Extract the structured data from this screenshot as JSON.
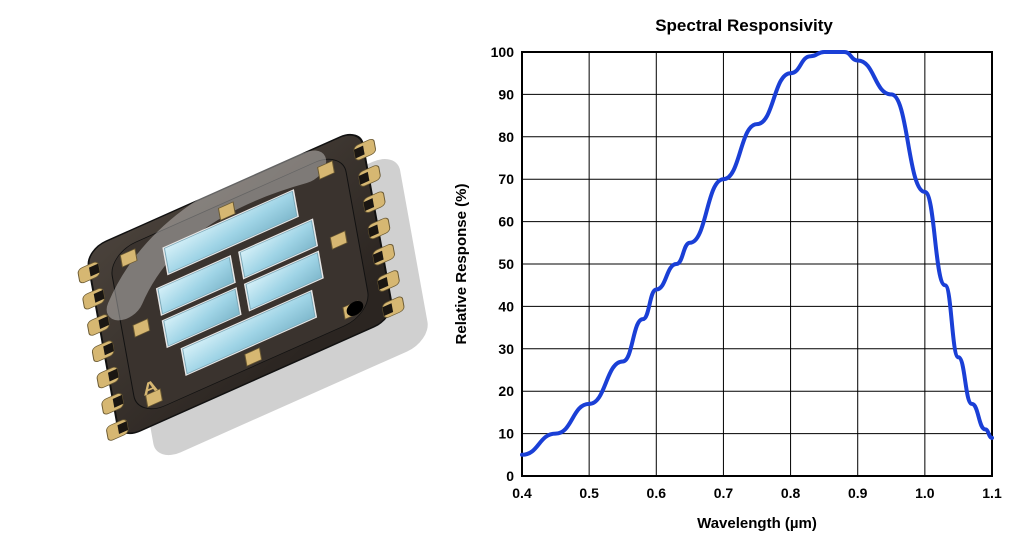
{
  "chip_illustration": {
    "description": "photodiode-array-chip",
    "body_color": "#2b2521",
    "substrate_color": "#3a332e",
    "pad_color": "#d6b772",
    "die_color": "#9fd4e6",
    "die_edge_color": "#e8e8e8",
    "shadow_color": "#d0d0d0",
    "highlight_color": "#ffffff",
    "marking": "A"
  },
  "chart": {
    "type": "line",
    "title": "Spectral Responsivity",
    "title_fontsize": 17,
    "title_fontweight": "bold",
    "xlabel": "Wavelength (µm)",
    "ylabel": "Relative Response (%)",
    "label_fontsize": 15,
    "label_fontweight": "bold",
    "tick_fontsize": 14,
    "tick_fontweight": "bold",
    "xlim": [
      0.4,
      1.1
    ],
    "ylim": [
      0,
      100
    ],
    "xticks": [
      0.4,
      0.5,
      0.6,
      0.7,
      0.8,
      0.9,
      1.0,
      1.1
    ],
    "yticks": [
      0,
      10,
      20,
      30,
      40,
      50,
      60,
      70,
      80,
      90,
      100
    ],
    "grid_color": "#000000",
    "grid_width": 1,
    "axis_color": "#000000",
    "axis_width": 2,
    "background_color": "#ffffff",
    "series": {
      "color": "#1a3fd6",
      "width": 4,
      "points": [
        [
          0.4,
          5
        ],
        [
          0.45,
          10
        ],
        [
          0.5,
          17
        ],
        [
          0.55,
          27
        ],
        [
          0.58,
          37
        ],
        [
          0.6,
          44
        ],
        [
          0.63,
          50
        ],
        [
          0.65,
          55
        ],
        [
          0.7,
          70
        ],
        [
          0.75,
          83
        ],
        [
          0.8,
          95
        ],
        [
          0.83,
          99
        ],
        [
          0.85,
          100
        ],
        [
          0.88,
          100
        ],
        [
          0.9,
          98
        ],
        [
          0.95,
          90
        ],
        [
          1.0,
          67
        ],
        [
          1.03,
          45
        ],
        [
          1.05,
          28
        ],
        [
          1.07,
          17
        ],
        [
          1.09,
          11
        ],
        [
          1.1,
          9
        ]
      ]
    }
  }
}
